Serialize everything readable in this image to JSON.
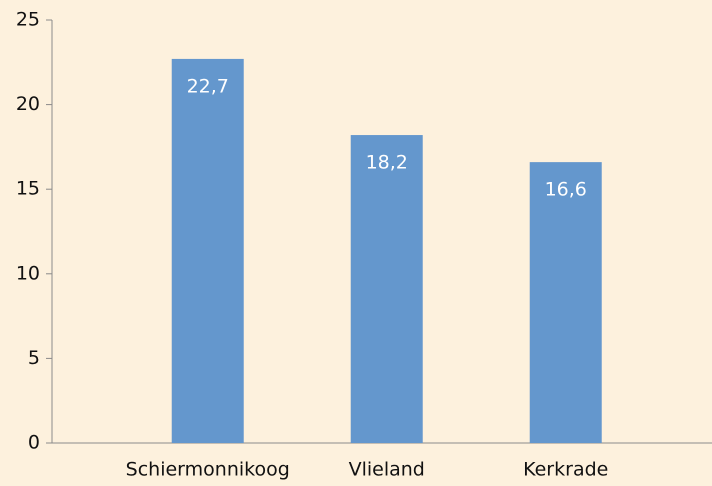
{
  "chart_data": {
    "type": "bar",
    "categories": [
      "Schiermonnikoog",
      "Vlieland",
      "Kerkrade"
    ],
    "values": [
      22.7,
      18.2,
      16.6
    ],
    "value_labels": [
      "22,7",
      "18,2",
      "16,6"
    ],
    "color": "#6497cd",
    "ylim": [
      0,
      25
    ],
    "yticks": [
      0,
      5,
      10,
      15,
      20,
      25
    ],
    "grid": false
  }
}
